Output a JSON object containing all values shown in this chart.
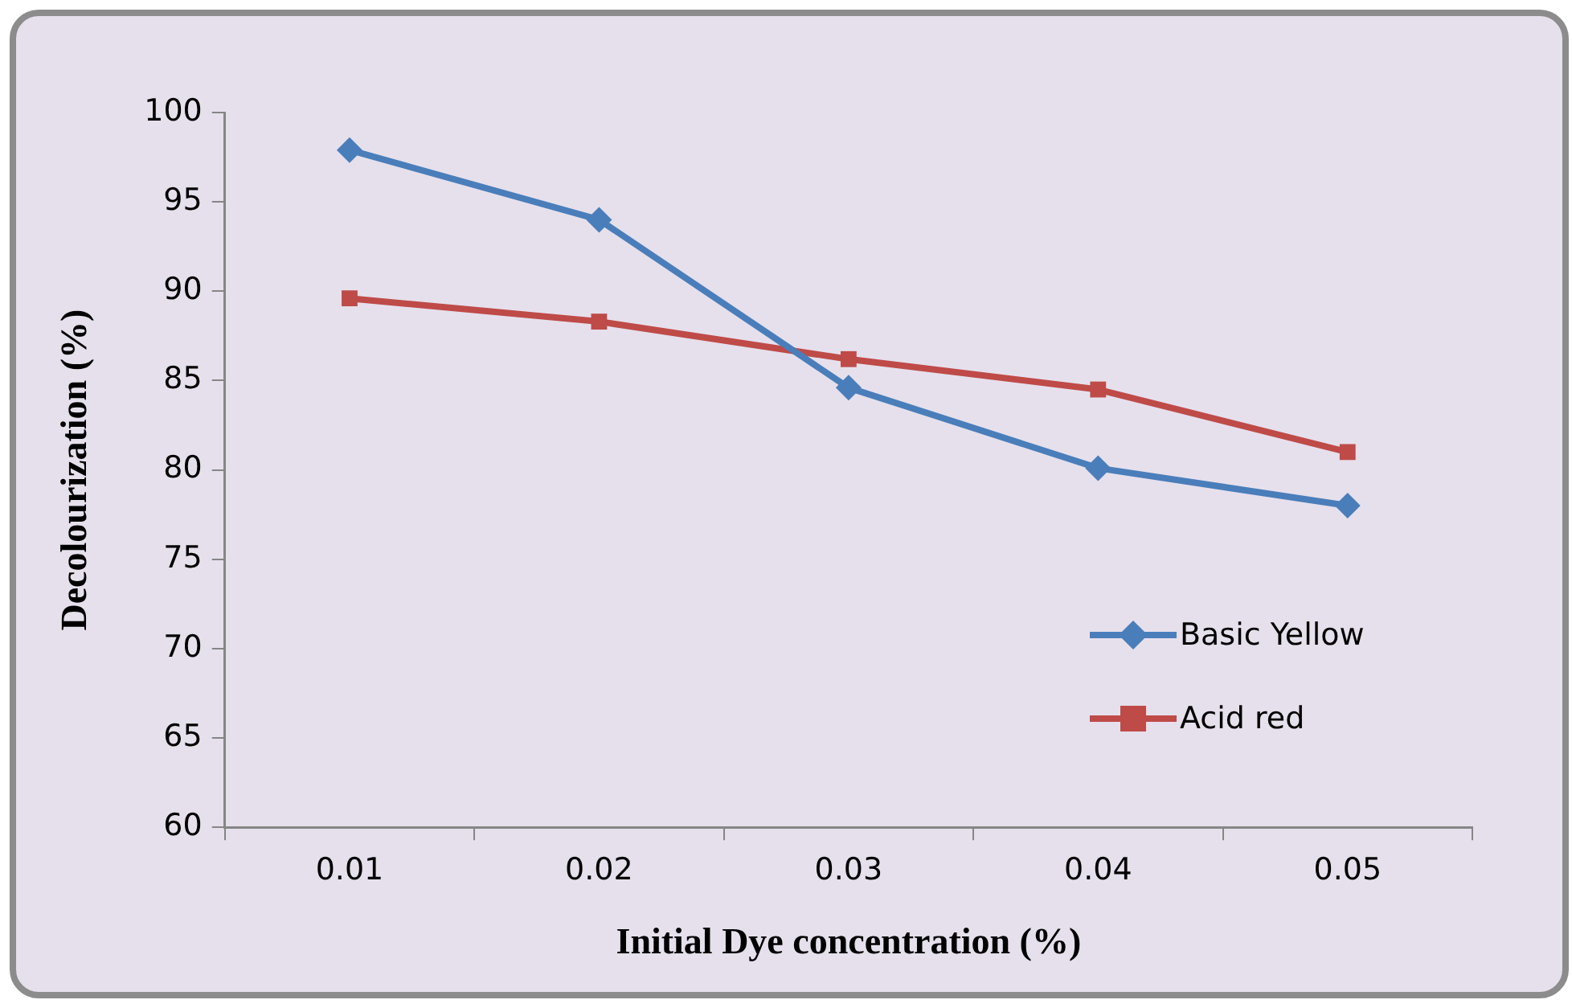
{
  "chart_data": {
    "type": "line",
    "xlabel": "Initial Dye concentration (%)",
    "ylabel": "Decolourization (%)",
    "categories": [
      "0.01",
      "0.02",
      "0.03",
      "0.04",
      "0.05"
    ],
    "series": [
      {
        "name": "Basic Yellow",
        "color": "#4a7ebb",
        "values": [
          97.9,
          94.0,
          84.6,
          80.1,
          78.0
        ],
        "marker": "diamond"
      },
      {
        "name": "Acid red",
        "color": "#be4b48",
        "values": [
          89.6,
          88.3,
          86.2,
          84.5,
          81.0
        ],
        "marker": "square"
      }
    ],
    "ylim": [
      60,
      100
    ],
    "yticks": [
      60,
      65,
      70,
      75,
      80,
      85,
      90,
      95,
      100
    ],
    "grid": false,
    "legend": "right",
    "line_style": "solid"
  }
}
